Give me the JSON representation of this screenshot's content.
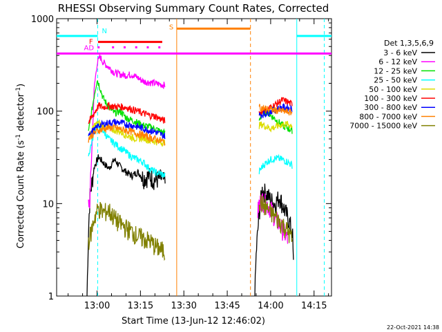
{
  "chart_data": {
    "type": "line",
    "title": "RHESSI Observing Summary Count Rates, Corrected",
    "xlabel": "Start Time (13-Jun-12 12:46:02)",
    "ylabel_main": "Corrected Count Rate (s",
    "ylabel_sup1": "-1",
    "ylabel_mid": " detector",
    "ylabel_sup2": "-1",
    "ylabel_end": ")",
    "y_scale": "log",
    "ylim": [
      1,
      1000
    ],
    "x_unit": "minutes after 12:46:02",
    "xlim": [
      0,
      95
    ],
    "x_ticks": [
      {
        "t": 13.97,
        "label": "13:00"
      },
      {
        "t": 28.97,
        "label": "13:15"
      },
      {
        "t": 43.97,
        "label": "13:30"
      },
      {
        "t": 58.97,
        "label": "13:45"
      },
      {
        "t": 73.97,
        "label": "14:00"
      },
      {
        "t": 88.97,
        "label": "14:15"
      }
    ],
    "y_ticks": [
      {
        "v": 1,
        "label": "1"
      },
      {
        "v": 10,
        "label": "10"
      },
      {
        "v": 100,
        "label": "100"
      },
      {
        "v": 1000,
        "label": "1000"
      }
    ],
    "legend_title": "Det 1,3,5,6,9",
    "legend_position": "right",
    "footer_date": "22-Oct-2021 14:38",
    "series": [
      {
        "name": "3 - 6 keV",
        "color": "#000000",
        "segments": [
          [
            [
              10.5,
              1
            ],
            [
              11.0,
              5
            ],
            [
              11.5,
              12
            ],
            [
              13.0,
              25
            ],
            [
              14.5,
              32
            ],
            [
              16,
              28
            ],
            [
              18,
              24
            ],
            [
              20,
              30
            ],
            [
              22,
              25
            ],
            [
              24,
              22
            ],
            [
              26,
              20
            ],
            [
              28,
              22
            ],
            [
              30,
              19
            ],
            [
              32,
              20
            ],
            [
              34,
              18
            ],
            [
              36,
              19
            ],
            [
              37.5,
              17
            ]
          ],
          [
            [
              68.5,
              1
            ],
            [
              69.0,
              3
            ],
            [
              70.0,
              8
            ],
            [
              71.0,
              14
            ],
            [
              72.5,
              13
            ],
            [
              74,
              11
            ],
            [
              75.5,
              10
            ],
            [
              77,
              12
            ],
            [
              78.5,
              9
            ],
            [
              80,
              7
            ],
            [
              81.5,
              5
            ],
            [
              82,
              1.5
            ]
          ]
        ]
      },
      {
        "name": "6 - 12 keV",
        "color": "#ff00ff",
        "segments": [
          [
            [
              11.0,
              10
            ],
            [
              11.5,
              11
            ],
            [
              13.0,
              180
            ],
            [
              14.0,
              330
            ],
            [
              15,
              390
            ],
            [
              16,
              340
            ],
            [
              18,
              300
            ],
            [
              20,
              260
            ],
            [
              22,
              250
            ],
            [
              24,
              245
            ],
            [
              26,
              250
            ],
            [
              28,
              230
            ],
            [
              30,
              210
            ],
            [
              32,
              205
            ],
            [
              34,
              200
            ],
            [
              36,
              195
            ],
            [
              37.5,
              190
            ]
          ],
          [
            [
              69.5,
              8
            ],
            [
              70,
              10
            ],
            [
              71,
              11
            ],
            [
              72.5,
              10
            ],
            [
              74,
              9
            ],
            [
              75.5,
              7
            ],
            [
              77,
              6
            ],
            [
              78.5,
              5
            ],
            [
              80,
              4
            ]
          ]
        ]
      },
      {
        "name": "12 - 25 keV",
        "color": "#00e000",
        "segments": [
          [
            [
              11.0,
              58
            ],
            [
              13.0,
              150
            ],
            [
              14.0,
              220
            ],
            [
              15,
              180
            ],
            [
              16,
              140
            ],
            [
              18,
              110
            ],
            [
              20,
              95
            ],
            [
              22,
              100
            ],
            [
              24,
              85
            ],
            [
              26,
              80
            ],
            [
              28,
              75
            ],
            [
              30,
              70
            ],
            [
              32,
              68
            ],
            [
              34,
              65
            ],
            [
              36,
              60
            ],
            [
              37.5,
              58
            ]
          ],
          [
            [
              70,
              80
            ],
            [
              71,
              95
            ],
            [
              72.5,
              100
            ],
            [
              74,
              90
            ],
            [
              76,
              80
            ],
            [
              78,
              70
            ],
            [
              80,
              65
            ],
            [
              81.5,
              62
            ]
          ]
        ]
      },
      {
        "name": "25 - 50 keV",
        "color": "#00ffff",
        "segments": [
          [
            [
              11.0,
              33
            ],
            [
              13.0,
              60
            ],
            [
              14.0,
              72
            ],
            [
              16,
              62
            ],
            [
              18,
              50
            ],
            [
              20,
              45
            ],
            [
              22,
              40
            ],
            [
              24,
              36
            ],
            [
              26,
              32
            ],
            [
              28,
              30
            ],
            [
              30,
              28
            ],
            [
              32,
              24
            ],
            [
              34,
              22
            ],
            [
              36,
              21
            ],
            [
              37.5,
              20
            ]
          ],
          [
            [
              70,
              22
            ],
            [
              71,
              25
            ],
            [
              72.5,
              28
            ],
            [
              74,
              30
            ],
            [
              76,
              31
            ],
            [
              78,
              30
            ],
            [
              80,
              28
            ],
            [
              81.5,
              26
            ]
          ]
        ]
      },
      {
        "name": "50 - 100 keV",
        "color": "#dddd00",
        "segments": [
          [
            [
              11.0,
              50
            ],
            [
              13.0,
              70
            ],
            [
              14.5,
              75
            ],
            [
              16,
              68
            ],
            [
              18,
              65
            ],
            [
              20,
              62
            ],
            [
              22,
              60
            ],
            [
              24,
              55
            ],
            [
              26,
              52
            ],
            [
              28,
              50
            ],
            [
              30,
              52
            ],
            [
              32,
              48
            ],
            [
              34,
              47
            ],
            [
              36,
              46
            ],
            [
              37.5,
              46
            ]
          ],
          [
            [
              70,
              70
            ],
            [
              71,
              72
            ],
            [
              72.5,
              68
            ],
            [
              74,
              65
            ],
            [
              76,
              68
            ],
            [
              78,
              72
            ],
            [
              80,
              72
            ],
            [
              81.5,
              70
            ]
          ]
        ]
      },
      {
        "name": "100 - 300 keV",
        "color": "#ff0000",
        "segments": [
          [
            [
              11.0,
              75
            ],
            [
              13.0,
              95
            ],
            [
              14.5,
              115
            ],
            [
              16,
              110
            ],
            [
              18,
              115
            ],
            [
              20,
              112
            ],
            [
              22,
              112
            ],
            [
              24,
              110
            ],
            [
              26,
              105
            ],
            [
              28,
              100
            ],
            [
              30,
              95
            ],
            [
              32,
              90
            ],
            [
              34,
              88
            ],
            [
              36,
              82
            ],
            [
              37.5,
              78
            ]
          ],
          [
            [
              70,
              95
            ],
            [
              71,
              100
            ],
            [
              72.5,
              105
            ],
            [
              74,
              110
            ],
            [
              76,
              120
            ],
            [
              78,
              132
            ],
            [
              80,
              125
            ],
            [
              81.5,
              118
            ]
          ]
        ]
      },
      {
        "name": "300 - 800 keV",
        "color": "#0000ff",
        "segments": [
          [
            [
              11.0,
              58
            ],
            [
              13.0,
              62
            ],
            [
              14.5,
              70
            ],
            [
              16,
              72
            ],
            [
              18,
              75
            ],
            [
              20,
              76
            ],
            [
              22,
              75
            ],
            [
              24,
              72
            ],
            [
              26,
              70
            ],
            [
              28,
              68
            ],
            [
              30,
              65
            ],
            [
              32,
              62
            ],
            [
              34,
              60
            ],
            [
              36,
              56
            ],
            [
              37.5,
              54
            ]
          ],
          [
            [
              70,
              90
            ],
            [
              71,
              92
            ],
            [
              72.5,
              95
            ],
            [
              74,
              100
            ],
            [
              76,
              105
            ],
            [
              78,
              110
            ],
            [
              80,
              108
            ],
            [
              81.5,
              105
            ]
          ]
        ]
      },
      {
        "name": "800 - 7000 keV",
        "color": "#ff8000",
        "segments": [
          [
            [
              11.0,
              50
            ],
            [
              13.0,
              58
            ],
            [
              14.5,
              62
            ],
            [
              16,
              64
            ],
            [
              18,
              66
            ],
            [
              20,
              66
            ],
            [
              22,
              64
            ],
            [
              24,
              62
            ],
            [
              26,
              60
            ],
            [
              28,
              57
            ],
            [
              30,
              55
            ],
            [
              32,
              52
            ],
            [
              34,
              50
            ],
            [
              36,
              48
            ],
            [
              37.5,
              46
            ]
          ],
          [
            [
              70,
              110
            ],
            [
              71,
              108
            ],
            [
              72.5,
              106
            ],
            [
              74,
              104
            ],
            [
              76,
              102
            ],
            [
              78,
              100
            ],
            [
              80,
              98
            ],
            [
              81.5,
              96
            ]
          ]
        ]
      },
      {
        "name": "7000 - 15000 keV",
        "color": "#808000",
        "segments": [
          [
            [
              11.0,
              4
            ],
            [
              12,
              5
            ],
            [
              13.0,
              7
            ],
            [
              14.5,
              9
            ],
            [
              16,
              8
            ],
            [
              18,
              8.5
            ],
            [
              20,
              7
            ],
            [
              22,
              6
            ],
            [
              24,
              5.5
            ],
            [
              26,
              5
            ],
            [
              28,
              4.5
            ],
            [
              30,
              4.2
            ],
            [
              32,
              4
            ],
            [
              34,
              3.5
            ],
            [
              36,
              3.2
            ],
            [
              37.5,
              3
            ]
          ],
          [
            [
              70,
              11
            ],
            [
              71,
              10
            ],
            [
              72.5,
              9
            ],
            [
              74,
              8
            ],
            [
              76,
              7
            ],
            [
              78,
              6
            ],
            [
              80,
              5
            ],
            [
              81.5,
              4
            ]
          ]
        ]
      }
    ],
    "flags": [
      {
        "label": "N",
        "color": "#00ffff",
        "value": 650,
        "segments": [
          [
            0,
            14.2
          ],
          [
            83,
            95
          ]
        ]
      },
      {
        "label": "S",
        "color": "#ff8000",
        "value": 780,
        "segments": [
          [
            41.5,
            67
          ]
        ]
      },
      {
        "label": "F",
        "color": "#ff0000",
        "value": 560,
        "segments": [
          [
            14.3,
            36.5
          ]
        ]
      },
      {
        "label": "AD",
        "color": "#ff00ff",
        "value": 420,
        "segments": [
          [
            0,
            95
          ]
        ]
      }
    ],
    "flag_dots": {
      "label": "AD",
      "color": "#ff00ff",
      "value": 490,
      "x": [
        14.5,
        19.5,
        23.5,
        27.5,
        31.5,
        35.5
      ]
    },
    "event_lines": [
      {
        "t": 14.2,
        "color": "#00ffff",
        "style": "dashed"
      },
      {
        "t": 41.5,
        "color": "#ff8000",
        "style": "solid"
      },
      {
        "t": 67.0,
        "color": "#ff8000",
        "style": "dashed"
      },
      {
        "t": 83.0,
        "color": "#00ffff",
        "style": "solid"
      },
      {
        "t": 92.5,
        "color": "#00ffff",
        "style": "dashed"
      }
    ]
  }
}
